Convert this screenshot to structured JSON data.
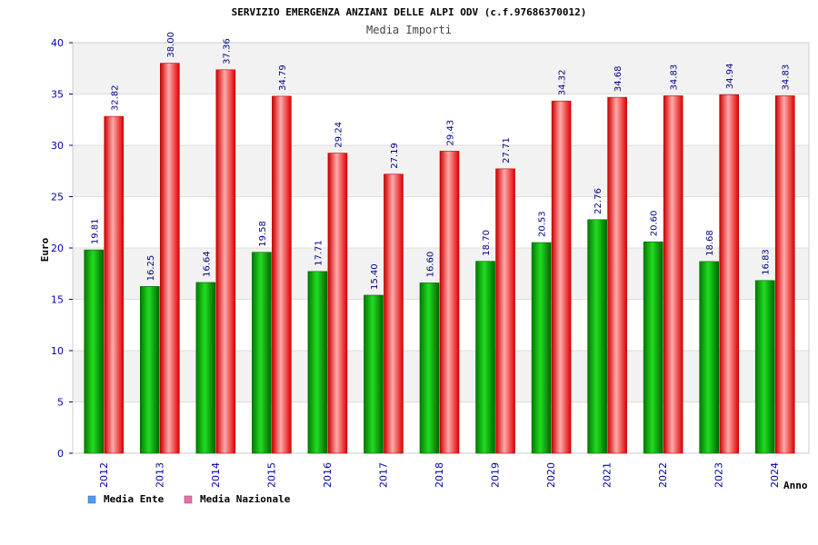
{
  "chart_data": {
    "type": "bar",
    "title": "SERVIZIO EMERGENZA ANZIANI DELLE ALPI ODV (c.f.97686370012)",
    "subtitle": "Media Importi",
    "xlabel": "Anno",
    "ylabel": "Euro",
    "ylim": [
      0,
      40
    ],
    "yticks": [
      "0",
      "5",
      "10",
      "15",
      "20",
      "25",
      "30",
      "35",
      "40"
    ],
    "categories": [
      "2012",
      "2013",
      "2014",
      "2015",
      "2016",
      "2017",
      "2018",
      "2019",
      "2020",
      "2021",
      "2022",
      "2023",
      "2024"
    ],
    "series": [
      {
        "name": "Media Ente",
        "color": "#00bb00",
        "values": [
          19.81,
          16.25,
          16.64,
          19.58,
          17.71,
          15.4,
          16.6,
          18.7,
          20.53,
          22.76,
          20.6,
          18.68,
          16.83
        ],
        "labels": [
          "19.81",
          "16.25",
          "16.64",
          "19.58",
          "17.71",
          "15.40",
          "16.60",
          "18.70",
          "20.53",
          "22.76",
          "20.60",
          "18.68",
          "16.83"
        ]
      },
      {
        "name": "Media Nazionale",
        "color": "#ee0000",
        "values": [
          32.82,
          38.0,
          37.36,
          34.79,
          29.24,
          27.19,
          29.43,
          27.71,
          34.32,
          34.68,
          34.83,
          34.94,
          34.83
        ],
        "labels": [
          "32.82",
          "38.00",
          "37.36",
          "34.79",
          "29.24",
          "27.19",
          "29.43",
          "27.71",
          "34.32",
          "34.68",
          "34.83",
          "34.94",
          "34.83"
        ]
      }
    ],
    "legend": [
      {
        "label": "Media Ente",
        "color": "#5599ee"
      },
      {
        "label": "Media Nazionale",
        "color": "#dd77aa"
      }
    ],
    "grid": true
  }
}
